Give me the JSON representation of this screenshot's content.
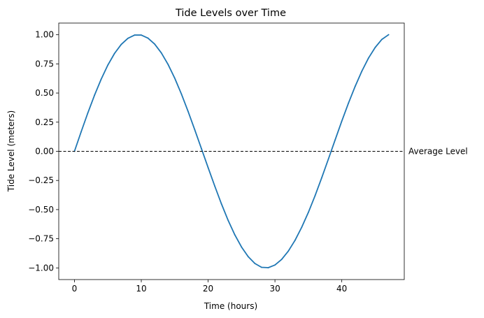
{
  "chart_data": {
    "type": "line",
    "title": "Tide Levels over Time",
    "xlabel": "Time (hours)",
    "ylabel": "Tide Level (meters)",
    "xlim": [
      -2.35,
      49.35
    ],
    "ylim": [
      -1.1,
      1.1
    ],
    "x_ticks": [
      0,
      10,
      20,
      30,
      40
    ],
    "y_ticks": [
      1.0,
      0.75,
      0.5,
      0.25,
      0.0,
      -0.25,
      -0.5,
      -0.75,
      -1.0
    ],
    "x_tick_labels": [
      "0",
      "10",
      "20",
      "30",
      "40"
    ],
    "y_tick_labels": [
      "1.00",
      "0.75",
      "0.50",
      "0.25",
      "0.00",
      "−0.25",
      "−0.50",
      "−0.75",
      "−1.00"
    ],
    "grid": false,
    "series": [
      {
        "color": "#1f77b4",
        "x": [
          0,
          1,
          2,
          3,
          4,
          5,
          6,
          7,
          8,
          9,
          10,
          11,
          12,
          13,
          14,
          15,
          16,
          17,
          18,
          19,
          20,
          21,
          22,
          23,
          24,
          25,
          26,
          27,
          28,
          29,
          30,
          31,
          32,
          33,
          34,
          35,
          36,
          37,
          38,
          39,
          40,
          41,
          42,
          43,
          44,
          45,
          46,
          47
        ],
        "y": [
          0.0,
          0.167,
          0.329,
          0.481,
          0.619,
          0.74,
          0.84,
          0.917,
          0.969,
          0.997,
          0.997,
          0.971,
          0.92,
          0.844,
          0.746,
          0.628,
          0.492,
          0.343,
          0.185,
          0.023,
          -0.14,
          -0.299,
          -0.452,
          -0.593,
          -0.717,
          -0.821,
          -0.904,
          -0.962,
          -0.995,
          -0.998,
          -0.975,
          -0.927,
          -0.856,
          -0.764,
          -0.652,
          -0.524,
          -0.381,
          -0.227,
          -0.066,
          0.097,
          0.259,
          0.413,
          0.557,
          0.687,
          0.8,
          0.891,
          0.96,
          1.0
        ]
      }
    ],
    "reference_line": {
      "y": 0,
      "style": "dashed",
      "color": "#000000",
      "label": "Average Level"
    }
  }
}
